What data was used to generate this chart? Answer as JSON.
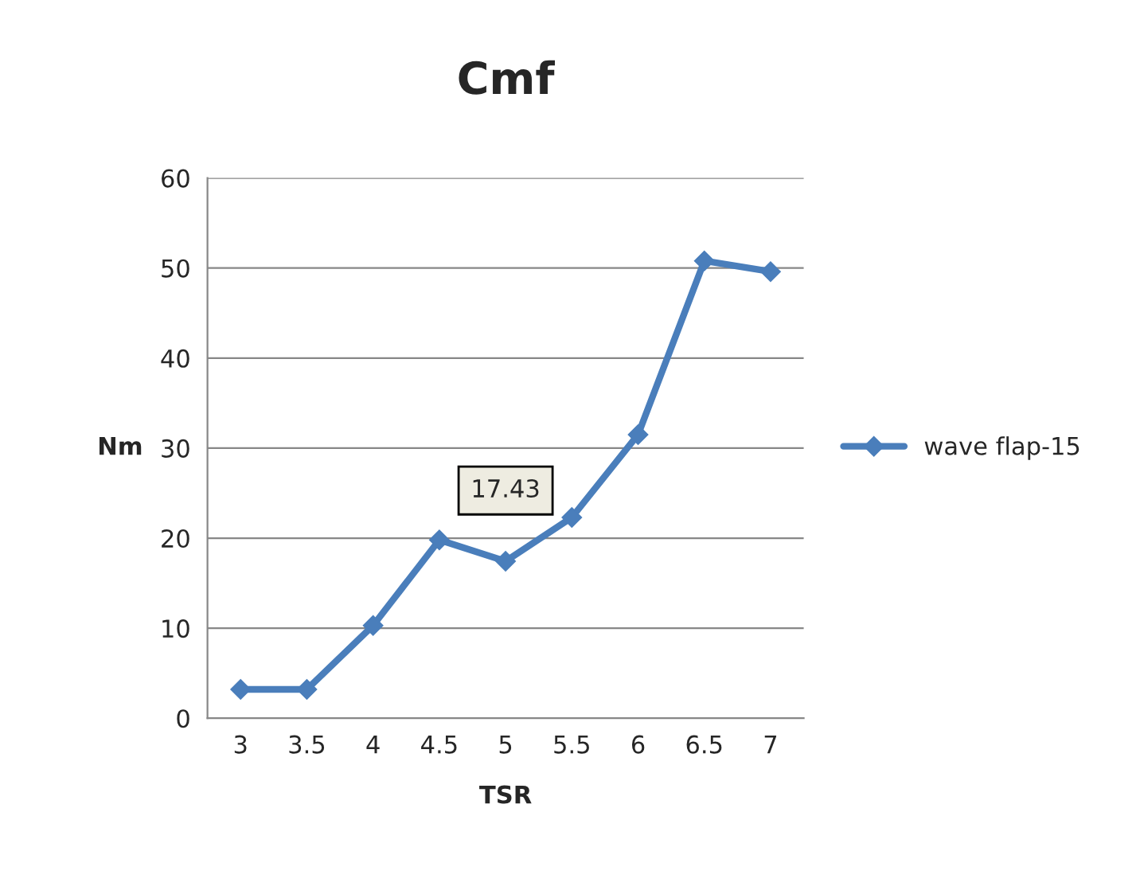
{
  "chart_data": {
    "type": "line",
    "title": "Cmf",
    "xlabel": "TSR",
    "ylabel": "Nm",
    "categories": [
      "3",
      "3.5",
      "4",
      "4.5",
      "5",
      "5.5",
      "6",
      "6.5",
      "7"
    ],
    "series": [
      {
        "name": "wave flap-15",
        "color": "#4a7ebb",
        "values": [
          3.2,
          3.2,
          10.3,
          19.8,
          17.43,
          22.3,
          31.5,
          50.8,
          49.6
        ],
        "value_labels": [
          null,
          null,
          null,
          null,
          "17.43",
          null,
          null,
          null,
          null
        ]
      }
    ],
    "ylim": [
      0,
      60
    ],
    "yticks": [
      0,
      10,
      20,
      30,
      40,
      50,
      60
    ],
    "grid": "y",
    "legend": "right",
    "marker": "diamond",
    "line_style": "solid"
  }
}
